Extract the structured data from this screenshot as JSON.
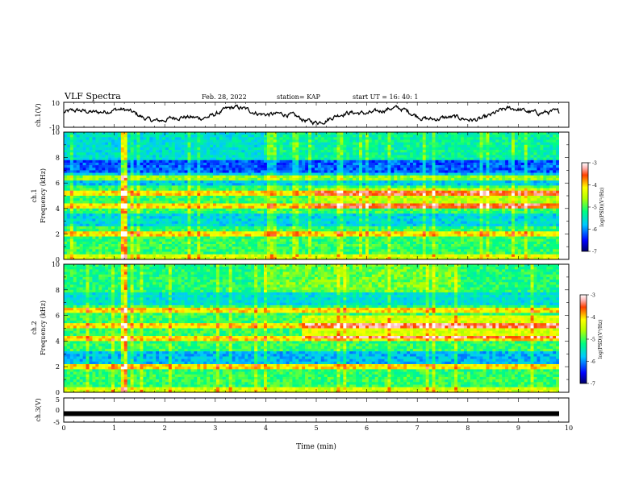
{
  "header": {
    "title": "VLF Spectra",
    "date": "Feb. 28, 2022",
    "station": "station= KAP",
    "start": "start  UT =   16: 40: 1"
  },
  "chart_data": [
    {
      "type": "line",
      "ylabel": "ch.1(V)",
      "ylim": [
        -10,
        10
      ],
      "yticks": [
        "10",
        "-10"
      ],
      "xlim": [
        0,
        10
      ],
      "description_level": "waveform mostly between -8 and 8 V"
    },
    {
      "type": "heatmap",
      "ylabel_lines": [
        "ch.1",
        "Frequency  (kHz)"
      ],
      "ylim": [
        0,
        10
      ],
      "yticks": [
        "0",
        "2",
        "4",
        "6",
        "8",
        "10"
      ],
      "xlim": [
        0,
        10
      ],
      "colorbar": {
        "label": "log(PSD)(V²/Hz)",
        "range": [
          -7,
          -3
        ],
        "ticks": [
          "-3",
          "-4",
          "-5",
          "-6",
          "-7"
        ]
      }
    },
    {
      "type": "heatmap",
      "ylabel_lines": [
        "ch.2",
        "Frequency  (kHz)"
      ],
      "ylim": [
        0,
        10
      ],
      "yticks": [
        "0",
        "2",
        "4",
        "6",
        "8",
        "10"
      ],
      "xlim": [
        0,
        10
      ],
      "colorbar": {
        "label": "log(PSD)(V²/Hz)",
        "range": [
          -7,
          -3
        ],
        "ticks": [
          "-3",
          "-4",
          "-5",
          "-6",
          "-7"
        ]
      }
    },
    {
      "type": "line",
      "ylabel": "ch.3(V)",
      "ylim": [
        -5,
        5
      ],
      "yticks": [
        "5",
        "0",
        "-5"
      ],
      "xlim": [
        0,
        10
      ],
      "constant_level": -1.5,
      "xlabel": "Time  (min)",
      "xticks": [
        "0",
        "1",
        "2",
        "3",
        "4",
        "5",
        "6",
        "7",
        "8",
        "9",
        "10"
      ]
    }
  ]
}
